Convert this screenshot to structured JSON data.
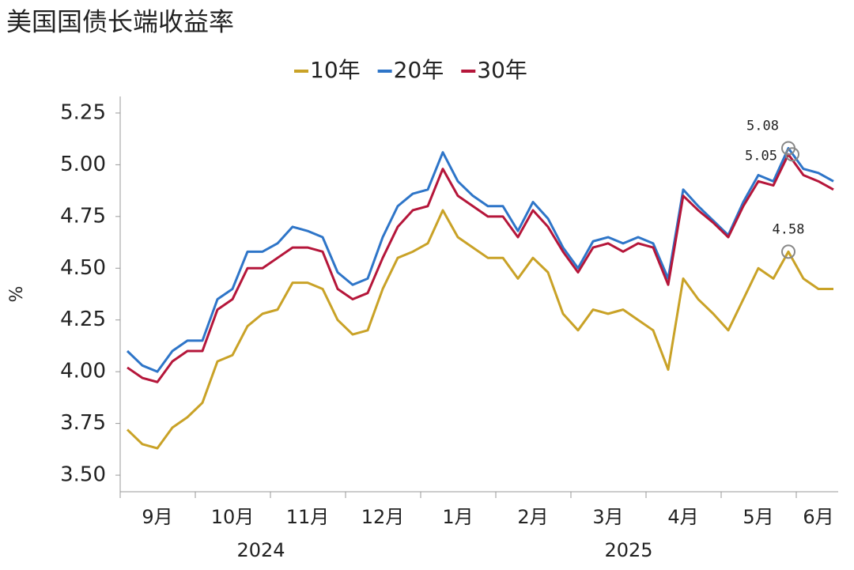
{
  "chart_data": {
    "type": "line",
    "title": "美国国债长端收益率",
    "ylabel": "%",
    "categories": [
      null,
      null,
      "9月",
      null,
      null,
      null,
      null,
      "10月",
      null,
      null,
      null,
      null,
      "11月",
      null,
      null,
      null,
      null,
      "12月",
      null,
      null,
      null,
      null,
      "1月",
      null,
      null,
      null,
      null,
      "2月",
      null,
      null,
      null,
      null,
      "3月",
      null,
      null,
      null,
      null,
      "4月",
      null,
      null,
      null,
      null,
      "5月",
      null,
      null,
      null,
      "6月",
      null
    ],
    "year_labels": [
      "2024",
      "2025"
    ],
    "series": [
      {
        "name": "10年",
        "color": "#c9a227",
        "values": [
          3.72,
          3.65,
          3.63,
          3.73,
          3.78,
          3.85,
          4.05,
          4.08,
          4.22,
          4.28,
          4.3,
          4.43,
          4.43,
          4.4,
          4.25,
          4.18,
          4.2,
          4.4,
          4.55,
          4.58,
          4.62,
          4.78,
          4.65,
          4.6,
          4.55,
          4.55,
          4.45,
          4.55,
          4.48,
          4.28,
          4.2,
          4.3,
          4.28,
          4.3,
          4.25,
          4.2,
          4.01,
          4.45,
          4.35,
          4.28,
          4.2,
          4.35,
          4.5,
          4.45,
          4.58,
          4.45,
          4.4,
          4.4
        ]
      },
      {
        "name": "20年",
        "color": "#2e75c8",
        "values": [
          4.1,
          4.03,
          4.0,
          4.1,
          4.15,
          4.15,
          4.35,
          4.4,
          4.58,
          4.58,
          4.62,
          4.7,
          4.68,
          4.65,
          4.48,
          4.42,
          4.45,
          4.65,
          4.8,
          4.86,
          4.88,
          5.06,
          4.92,
          4.85,
          4.8,
          4.8,
          4.68,
          4.82,
          4.74,
          4.6,
          4.5,
          4.63,
          4.65,
          4.62,
          4.65,
          4.62,
          4.45,
          4.88,
          4.8,
          4.73,
          4.66,
          4.82,
          4.95,
          4.92,
          5.08,
          4.98,
          4.96,
          4.92
        ]
      },
      {
        "name": "30年",
        "color": "#b5163a",
        "values": [
          4.02,
          3.97,
          3.95,
          4.05,
          4.1,
          4.1,
          4.3,
          4.35,
          4.5,
          4.5,
          4.55,
          4.6,
          4.6,
          4.58,
          4.4,
          4.35,
          4.38,
          4.55,
          4.7,
          4.78,
          4.8,
          4.98,
          4.85,
          4.8,
          4.75,
          4.75,
          4.65,
          4.78,
          4.7,
          4.58,
          4.48,
          4.6,
          4.62,
          4.58,
          4.62,
          4.6,
          4.42,
          4.85,
          4.78,
          4.72,
          4.65,
          4.8,
          4.92,
          4.9,
          5.05,
          4.95,
          4.92,
          4.88
        ]
      }
    ],
    "annotations": [
      {
        "label": "5.08",
        "series": 1,
        "index": 44
      },
      {
        "label": "5.05",
        "series": 2,
        "index": 44
      },
      {
        "label": "4.58",
        "series": 0,
        "index": 44
      }
    ],
    "ylim": [
      3.42,
      5.33
    ],
    "yticks": [
      {
        "value": 3.5,
        "label": "3.50"
      },
      3.75,
      {
        "value": 4,
        "label": "4.00"
      },
      4.25,
      {
        "value": 4.5,
        "label": "4.50"
      },
      4.75,
      {
        "value": 5,
        "label": "5.00"
      },
      5.25
    ],
    "legend": "top",
    "grid": false
  }
}
